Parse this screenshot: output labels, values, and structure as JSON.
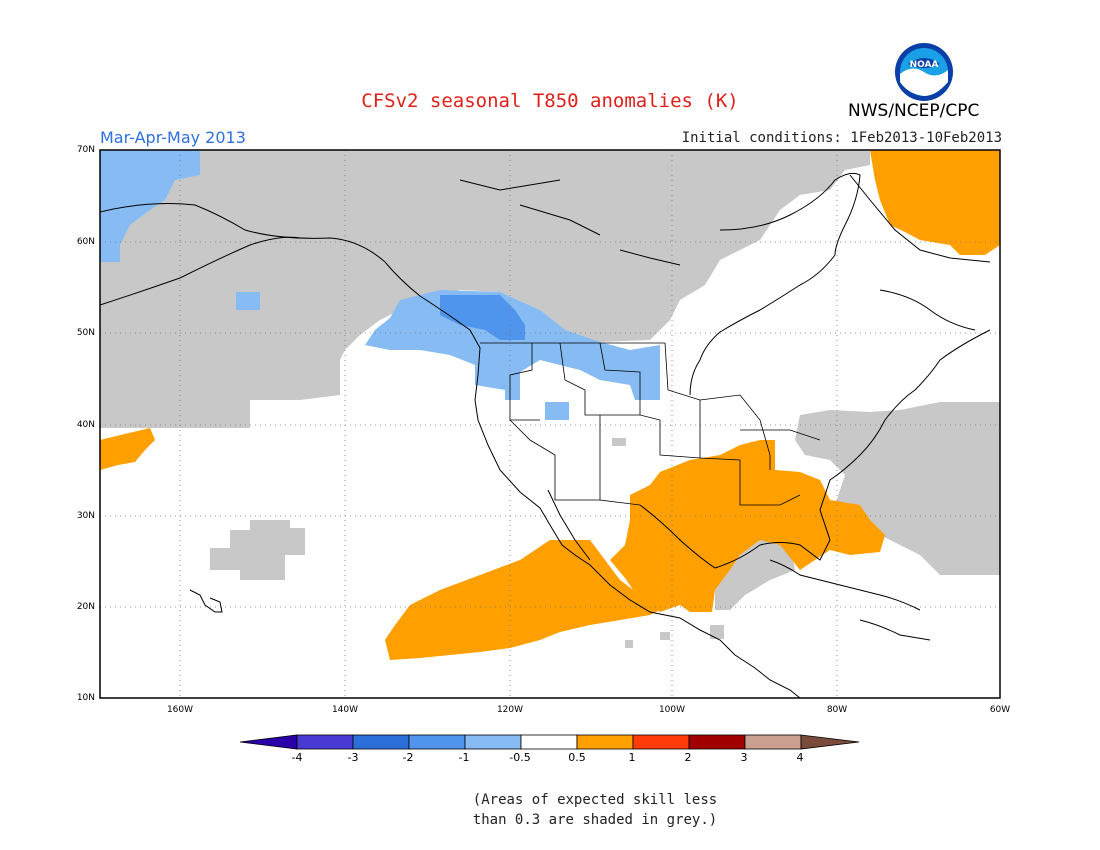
{
  "header": {
    "title": "CFSv2 seasonal T850 anomalies (K)",
    "agency": "NWS/NCEP/CPC",
    "logo_text": "NOAA",
    "season": "Mar-Apr-May 2013",
    "initial_conditions": "Initial conditions: 1Feb2013-10Feb2013"
  },
  "map": {
    "region": "North America and Eastern Pacific",
    "lat_range": [
      10,
      70
    ],
    "lon_range": [
      -172,
      -60
    ],
    "lat_labels": [
      "70N",
      "60N",
      "50N",
      "40N",
      "30N",
      "20N",
      "10N"
    ],
    "lon_labels": [
      "160W",
      "140W",
      "120W",
      "100W",
      "80W",
      "60W"
    ]
  },
  "colorbar": {
    "labels": [
      "-4",
      "-3",
      "-2",
      "-1",
      "-0.5",
      "0.5",
      "1",
      "2",
      "3",
      "4"
    ],
    "colors": [
      "#2a00a8",
      "#4a3ad4",
      "#2d6fd8",
      "#4f95ee",
      "#86bbf3",
      "#ffffff",
      "#ff9f00",
      "#ff3b0a",
      "#a00000",
      "#c9a090",
      "#7a4a3a"
    ]
  },
  "legend_note": {
    "line1": "(Areas of expected skill less",
    "line2": "than 0.3 are shaded in grey.)"
  },
  "colors": {
    "grey_skill": "#c8c8c8",
    "light_blue": "#86bbf3",
    "mid_blue": "#4f95ee",
    "orange": "#ff9f00",
    "title_red": "#e0201a",
    "season_blue": "#2f6fe0"
  }
}
